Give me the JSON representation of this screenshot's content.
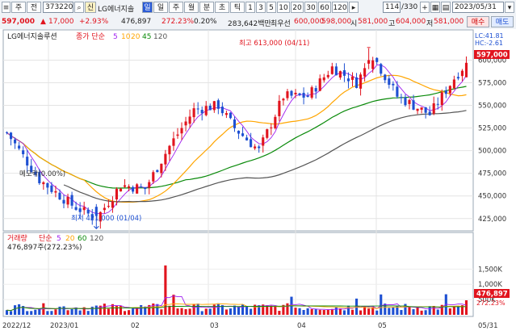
{
  "toolbar": {
    "market_label": "주",
    "period_label": "전",
    "code_value": "373220",
    "badge_credit": "신",
    "stock_name": "LG에너지솔",
    "badge_day": "일",
    "price": "597,000",
    "change_arrow": "▲",
    "change": "17,000",
    "change_pct": "+2.93%",
    "volume": "476,897",
    "volume_ratio": "272.23%",
    "turnover_ratio": "0.20%",
    "trade_value": "283,642백만",
    "high_label": "최우선",
    "best_ask": "600,000",
    "best_bid": "598,000",
    "open_label": "시",
    "open": "581,000",
    "high_short": "고",
    "high": "604,000",
    "low_short": "저",
    "low": "581,000",
    "periods": [
      "일",
      "주",
      "월",
      "분",
      "초",
      "틱"
    ],
    "minute_steps": [
      "1",
      "3",
      "5",
      "10",
      "20",
      "30",
      "60",
      "120"
    ],
    "view_count": "114",
    "view_total": "/330",
    "date": "2023/05/31",
    "buy_label": "매수",
    "sell_label": "매도"
  },
  "colors": {
    "up": "#e1141e",
    "down": "#1e50d2",
    "ma5": "#a020f0",
    "ma10": "#ffa500",
    "ma20": "#ffa500",
    "ma60": "#0a8a0a",
    "ma120": "#555555",
    "price_tag": "#e1141e"
  },
  "price_panel": {
    "title": "LG에너지솔루션",
    "ma_label": "종가 단순",
    "ma_values": [
      "5",
      "10",
      "20",
      "45",
      "120"
    ],
    "lc_label": "LC:41.81",
    "hc_label": "HC:-2.61",
    "annotation_high": "최고 613,000 (04/11)",
    "annotation_low": "최저 421,000 (01/04)",
    "annotation_drop": "메모락(0.00%)",
    "current_price_tag": "597,000",
    "y_ticks": [
      "600,000",
      "575,000",
      "550,000",
      "525,000",
      "500,000",
      "475,000",
      "450,000",
      "425,000"
    ]
  },
  "volume_panel": {
    "title": "거래량",
    "ma_label": "단순",
    "ma_values": [
      "5",
      "20",
      "60",
      "120"
    ],
    "summary": "476,897주(272.23%)",
    "current_volume_tag": "476,897",
    "current_ratio_tag": "272.23%",
    "y_ticks": [
      "1,500K",
      "1,000K",
      "500K"
    ]
  },
  "x_axis": {
    "labels": [
      "2022/12",
      "2023/01",
      "02",
      "03",
      "04",
      "05",
      "05/31"
    ]
  },
  "chart_data": {
    "type": "candlestick",
    "ylim": [
      415000,
      620000
    ],
    "volume_ylim": [
      0,
      1800000
    ],
    "x_labels": [
      "2022/12",
      "2023/01",
      "02",
      "03",
      "04",
      "05",
      "05/31"
    ],
    "high_marker": {
      "value": 613000,
      "date": "04/11"
    },
    "low_marker": {
      "value": 421000,
      "date": "01/04"
    },
    "last_close": 597000,
    "last_volume": 476897
  }
}
